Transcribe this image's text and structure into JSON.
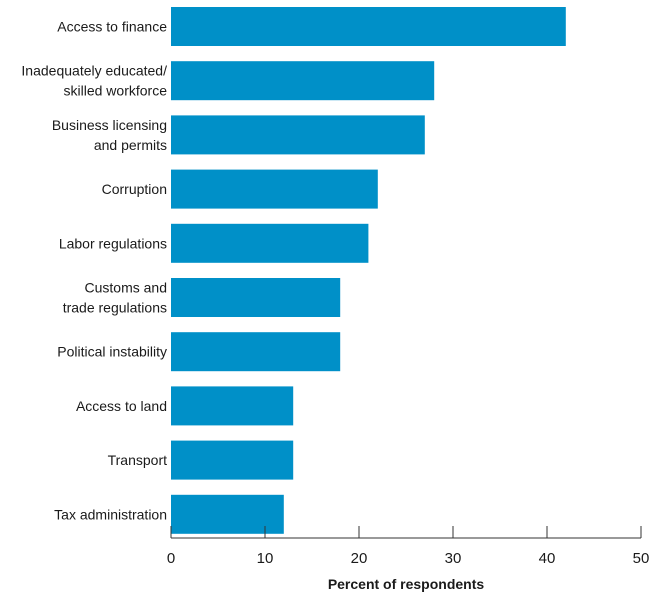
{
  "chart_data": {
    "type": "bar",
    "orientation": "horizontal",
    "categories": [
      [
        "Access to finance"
      ],
      [
        "Inadequately educated/",
        "skilled workforce"
      ],
      [
        "Business licensing",
        "and permits"
      ],
      [
        "Corruption"
      ],
      [
        "Labor regulations"
      ],
      [
        "Customs and",
        "trade regulations"
      ],
      [
        "Political instability"
      ],
      [
        "Access to land"
      ],
      [
        "Transport"
      ],
      [
        "Tax administration"
      ]
    ],
    "values": [
      42,
      28,
      27,
      22,
      21,
      18,
      18,
      13,
      13,
      12
    ],
    "xlabel": "Percent of respondents",
    "xlim": [
      0,
      50
    ],
    "xticks": [
      0,
      10,
      20,
      30,
      40,
      50
    ],
    "bar_color": "#0090c8",
    "grid": false,
    "legend": "none"
  }
}
